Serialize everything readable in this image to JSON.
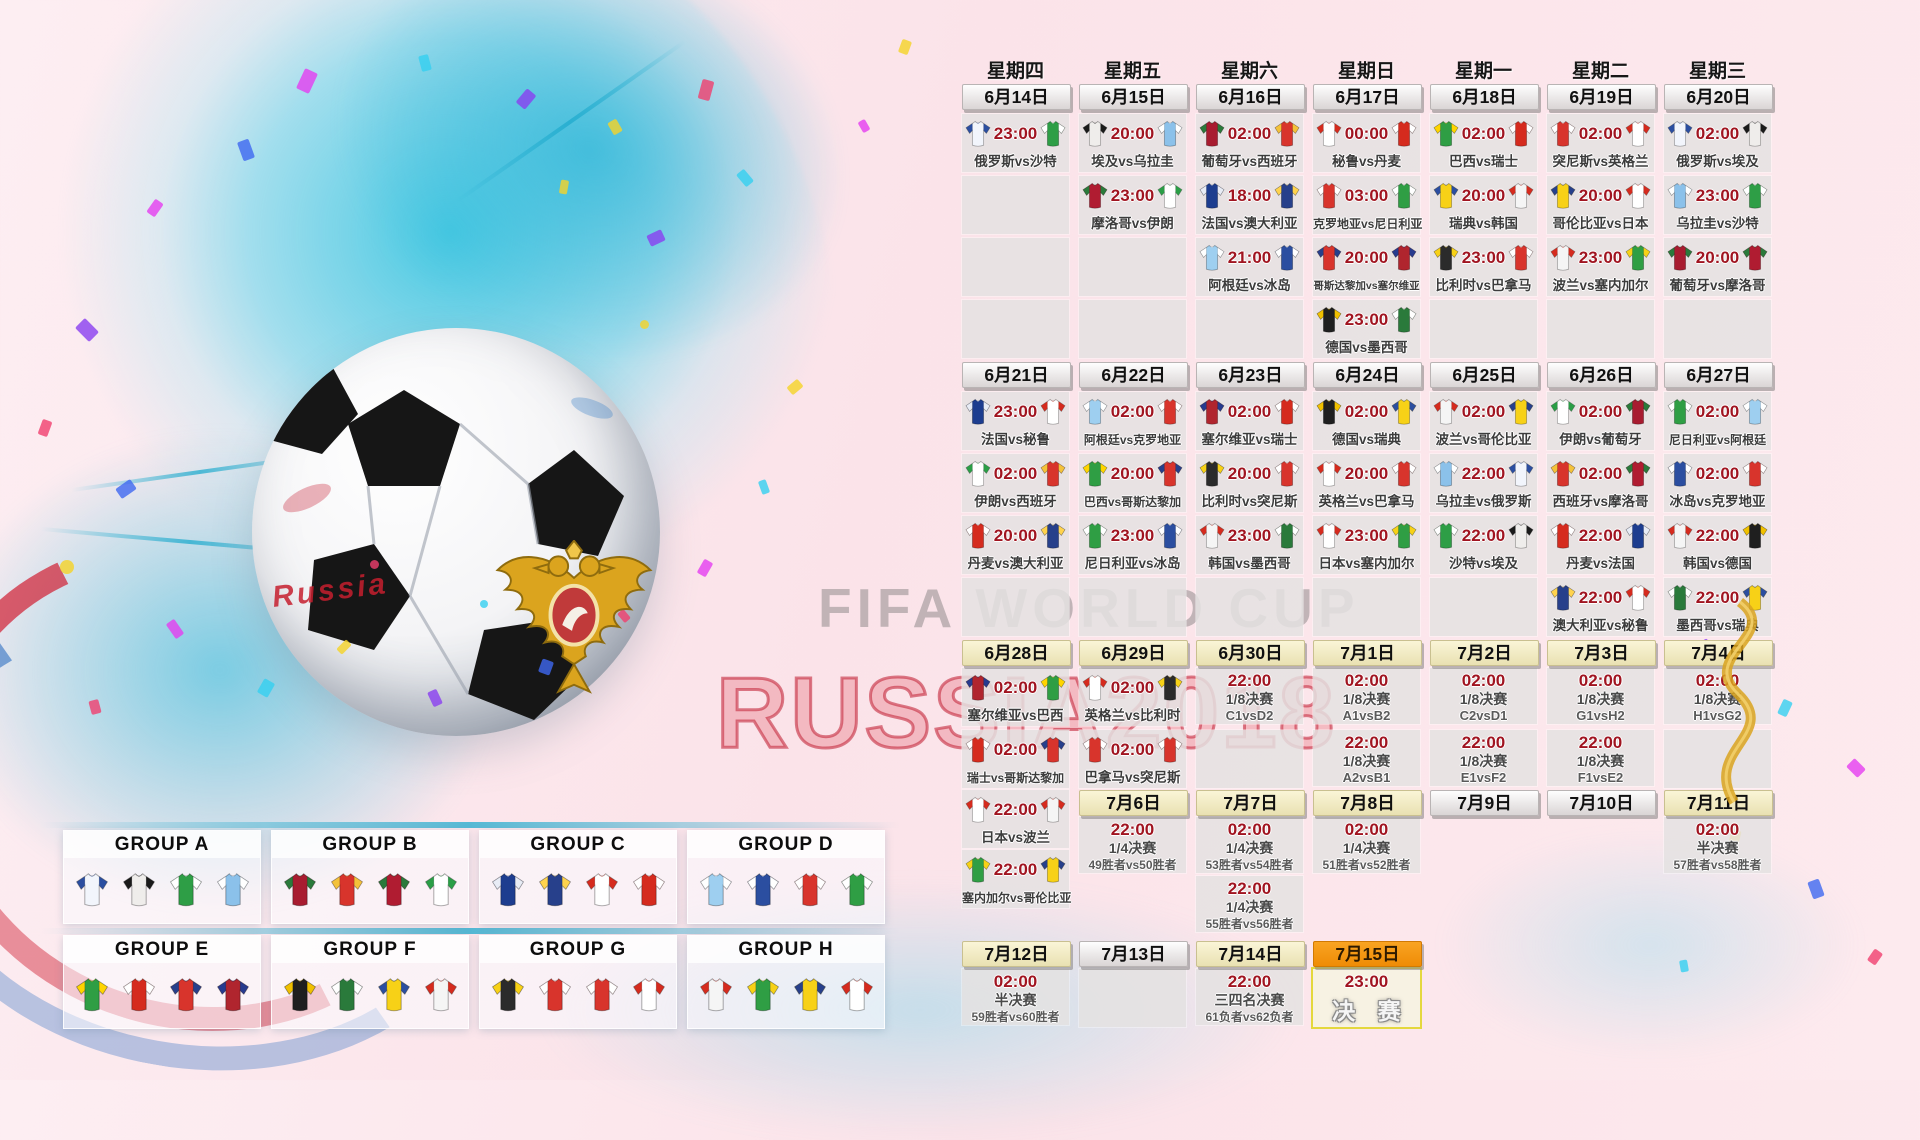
{
  "art": {
    "fifa_watermark": "FIFA WORLD CUP",
    "russia_watermark": "RUSSIA2018",
    "ball_script": "Russia"
  },
  "teams": {
    "俄罗斯": [
      "#f2f5fc",
      "#2b4ea0"
    ],
    "沙特": [
      "#2e9e46",
      "#ffffff"
    ],
    "埃及": [
      "#efedeb",
      "#1a1a1a"
    ],
    "乌拉圭": [
      "#8bc1ea",
      "#ffffff"
    ],
    "葡萄牙": [
      "#a81c30",
      "#2a7a3b"
    ],
    "西班牙": [
      "#d8342c",
      "#f3c23a"
    ],
    "秘鲁": [
      "#ffffff",
      "#d52b1e"
    ],
    "丹麦": [
      "#d52b1e",
      "#ffffff"
    ],
    "巴西": [
      "#2f9e44",
      "#ffd400"
    ],
    "瑞士": [
      "#d52b1e",
      "#ffffff"
    ],
    "突尼斯": [
      "#d8342c",
      "#ffffff"
    ],
    "英格兰": [
      "#ffffff",
      "#d52b1e"
    ],
    "摩洛哥": [
      "#b01c31",
      "#2a7a3b"
    ],
    "伊朗": [
      "#ffffff",
      "#2a9e46"
    ],
    "法国": [
      "#1d3d8f",
      "#e8ecf5"
    ],
    "澳大利亚": [
      "#27408b",
      "#ffd34d"
    ],
    "克罗地亚": [
      "#d8342c",
      "#ffffff"
    ],
    "尼日利亚": [
      "#2f9e44",
      "#ffffff"
    ],
    "瑞典": [
      "#f7d117",
      "#2b4ea0"
    ],
    "韩国": [
      "#f5f5f5",
      "#d52b1e"
    ],
    "哥伦比亚": [
      "#f7d117",
      "#27408b"
    ],
    "日本": [
      "#ffffff",
      "#d52b1e"
    ],
    "阿根廷": [
      "#9ecff0",
      "#ffffff"
    ],
    "冰岛": [
      "#2b4ea0",
      "#ffffff"
    ],
    "哥斯达黎加": [
      "#d8342c",
      "#27408b"
    ],
    "塞尔维亚": [
      "#b0252e",
      "#273b8e"
    ],
    "比利时": [
      "#2b2b2b",
      "#f7d117"
    ],
    "巴拿马": [
      "#d8342c",
      "#ffffff"
    ],
    "波兰": [
      "#f5f5f5",
      "#d52b1e"
    ],
    "塞内加尔": [
      "#2f9e44",
      "#f7d117"
    ],
    "德国": [
      "#1f1f1f",
      "#f0c000"
    ],
    "墨西哥": [
      "#2a7a3b",
      "#ffffff"
    ]
  },
  "groups": [
    {
      "label": "GROUP A",
      "teams": [
        "俄罗斯",
        "埃及",
        "沙特",
        "乌拉圭"
      ]
    },
    {
      "label": "GROUP B",
      "teams": [
        "葡萄牙",
        "西班牙",
        "摩洛哥",
        "伊朗"
      ]
    },
    {
      "label": "GROUP C",
      "teams": [
        "法国",
        "澳大利亚",
        "秘鲁",
        "丹麦"
      ]
    },
    {
      "label": "GROUP D",
      "teams": [
        "阿根廷",
        "冰岛",
        "克罗地亚",
        "尼日利亚"
      ]
    },
    {
      "label": "GROUP E",
      "teams": [
        "巴西",
        "瑞士",
        "哥斯达黎加",
        "塞尔维亚"
      ]
    },
    {
      "label": "GROUP F",
      "teams": [
        "德国",
        "墨西哥",
        "瑞典",
        "韩国"
      ]
    },
    {
      "label": "GROUP G",
      "teams": [
        "比利时",
        "巴拿马",
        "突尼斯",
        "英格兰"
      ]
    },
    {
      "label": "GROUP H",
      "teams": [
        "波兰",
        "塞内加尔",
        "哥伦比亚",
        "日本"
      ]
    }
  ],
  "schedule": {
    "weekdays": [
      "星期四",
      "星期五",
      "星期六",
      "星期日",
      "星期一",
      "星期二",
      "星期三"
    ],
    "date_rows": [
      {
        "labels": [
          "6月14日",
          "6月15日",
          "6月16日",
          "6月17日",
          "6月18日",
          "6月19日",
          "6月20日"
        ],
        "styles": [
          "gray",
          "gray",
          "gray",
          "gray",
          "gray",
          "gray",
          "gray"
        ]
      },
      {
        "labels": [
          "6月21日",
          "6月22日",
          "6月23日",
          "6月24日",
          "6月25日",
          "6月26日",
          "6月27日"
        ],
        "styles": [
          "gray",
          "gray",
          "gray",
          "gray",
          "gray",
          "gray",
          "gray"
        ]
      },
      {
        "labels": [
          "6月28日",
          "6月29日",
          "6月30日",
          "7月1日",
          "7月2日",
          "7月3日",
          "7月4日"
        ],
        "styles": [
          "cream",
          "cream",
          "cream",
          "cream",
          "cream",
          "cream",
          "cream"
        ]
      },
      {
        "labels": [
          "7月6日",
          "7月7日",
          "7月8日",
          "7月9日",
          "7月10日",
          "7月11日"
        ],
        "styles": [
          "cream",
          "cream",
          "cream",
          "gray",
          "gray",
          "cream"
        ]
      },
      {
        "labels": [
          "7月12日",
          "7月13日",
          "7月14日",
          "7月15日"
        ],
        "styles": [
          "cream",
          "gray",
          "cream",
          "orange"
        ]
      }
    ],
    "match_rows": [
      [
        {
          "t": "m",
          "time": "23:00",
          "h": "俄罗斯",
          "a": "沙特"
        },
        {
          "t": "m",
          "time": "20:00",
          "h": "埃及",
          "a": "乌拉圭"
        },
        {
          "t": "m",
          "time": "02:00",
          "h": "葡萄牙",
          "a": "西班牙"
        },
        {
          "t": "m",
          "time": "00:00",
          "h": "秘鲁",
          "a": "丹麦"
        },
        {
          "t": "m",
          "time": "02:00",
          "h": "巴西",
          "a": "瑞士"
        },
        {
          "t": "m",
          "time": "02:00",
          "h": "突尼斯",
          "a": "英格兰"
        },
        {
          "t": "m",
          "time": "02:00",
          "h": "俄罗斯",
          "a": "埃及"
        }
      ],
      [
        {
          "t": "e"
        },
        {
          "t": "m",
          "time": "23:00",
          "h": "摩洛哥",
          "a": "伊朗"
        },
        {
          "t": "m",
          "time": "18:00",
          "h": "法国",
          "a": "澳大利亚"
        },
        {
          "t": "m",
          "time": "03:00",
          "h": "克罗地亚",
          "a": "尼日利亚"
        },
        {
          "t": "m",
          "time": "20:00",
          "h": "瑞典",
          "a": "韩国"
        },
        {
          "t": "m",
          "time": "20:00",
          "h": "哥伦比亚",
          "a": "日本"
        },
        {
          "t": "m",
          "time": "23:00",
          "h": "乌拉圭",
          "a": "沙特"
        }
      ],
      [
        {
          "t": "e"
        },
        {
          "t": "e"
        },
        {
          "t": "m",
          "time": "21:00",
          "h": "阿根廷",
          "a": "冰岛"
        },
        {
          "t": "m",
          "time": "20:00",
          "h": "哥斯达黎加",
          "a": "塞尔维亚"
        },
        {
          "t": "m",
          "time": "23:00",
          "h": "比利时",
          "a": "巴拿马"
        },
        {
          "t": "m",
          "time": "23:00",
          "h": "波兰",
          "a": "塞内加尔"
        },
        {
          "t": "m",
          "time": "20:00",
          "h": "葡萄牙",
          "a": "摩洛哥"
        }
      ],
      [
        {
          "t": "e"
        },
        {
          "t": "e"
        },
        {
          "t": "e"
        },
        {
          "t": "m",
          "time": "23:00",
          "h": "德国",
          "a": "墨西哥"
        },
        {
          "t": "e"
        },
        {
          "t": "e"
        },
        {
          "t": "e"
        }
      ],
      [
        {
          "t": "m",
          "time": "23:00",
          "h": "法国",
          "a": "秘鲁"
        },
        {
          "t": "m",
          "time": "02:00",
          "h": "阿根廷",
          "a": "克罗地亚"
        },
        {
          "t": "m",
          "time": "02:00",
          "h": "塞尔维亚",
          "a": "瑞士"
        },
        {
          "t": "m",
          "time": "02:00",
          "h": "德国",
          "a": "瑞典"
        },
        {
          "t": "m",
          "time": "02:00",
          "h": "波兰",
          "a": "哥伦比亚"
        },
        {
          "t": "m",
          "time": "02:00",
          "h": "伊朗",
          "a": "葡萄牙"
        },
        {
          "t": "m",
          "time": "02:00",
          "h": "尼日利亚",
          "a": "阿根廷"
        }
      ],
      [
        {
          "t": "m",
          "time": "02:00",
          "h": "伊朗",
          "a": "西班牙"
        },
        {
          "t": "m",
          "time": "20:00",
          "h": "巴西",
          "a": "哥斯达黎加"
        },
        {
          "t": "m",
          "time": "20:00",
          "h": "比利时",
          "a": "突尼斯"
        },
        {
          "t": "m",
          "time": "20:00",
          "h": "英格兰",
          "a": "巴拿马"
        },
        {
          "t": "m",
          "time": "22:00",
          "h": "乌拉圭",
          "a": "俄罗斯"
        },
        {
          "t": "m",
          "time": "02:00",
          "h": "西班牙",
          "a": "摩洛哥"
        },
        {
          "t": "m",
          "time": "02:00",
          "h": "冰岛",
          "a": "克罗地亚"
        }
      ],
      [
        {
          "t": "m",
          "time": "20:00",
          "h": "丹麦",
          "a": "澳大利亚"
        },
        {
          "t": "m",
          "time": "23:00",
          "h": "尼日利亚",
          "a": "冰岛"
        },
        {
          "t": "m",
          "time": "23:00",
          "h": "韩国",
          "a": "墨西哥"
        },
        {
          "t": "m",
          "time": "23:00",
          "h": "日本",
          "a": "塞内加尔"
        },
        {
          "t": "m",
          "time": "22:00",
          "h": "沙特",
          "a": "埃及"
        },
        {
          "t": "m",
          "time": "22:00",
          "h": "丹麦",
          "a": "法国"
        },
        {
          "t": "m",
          "time": "22:00",
          "h": "韩国",
          "a": "德国"
        }
      ],
      [
        {
          "t": "e"
        },
        {
          "t": "e"
        },
        {
          "t": "e"
        },
        {
          "t": "e"
        },
        {
          "t": "e"
        },
        {
          "t": "m",
          "time": "22:00",
          "h": "澳大利亚",
          "a": "秘鲁"
        },
        {
          "t": "m",
          "time": "22:00",
          "h": "墨西哥",
          "a": "瑞典"
        }
      ],
      [
        {
          "t": "m",
          "time": "02:00",
          "h": "塞尔维亚",
          "a": "巴西"
        },
        {
          "t": "m",
          "time": "02:00",
          "h": "英格兰",
          "a": "比利时"
        },
        {
          "t": "k",
          "time": "22:00",
          "s": "1/8决赛",
          "p": "C1vsD2"
        },
        {
          "t": "k",
          "time": "02:00",
          "s": "1/8决赛",
          "p": "A1vsB2"
        },
        {
          "t": "k",
          "time": "02:00",
          "s": "1/8决赛",
          "p": "C2vsD1"
        },
        {
          "t": "k",
          "time": "02:00",
          "s": "1/8决赛",
          "p": "G1vsH2"
        },
        {
          "t": "k",
          "time": "02:00",
          "s": "1/8决赛",
          "p": "H1vsG2"
        }
      ],
      [
        {
          "t": "m",
          "time": "02:00",
          "h": "瑞士",
          "a": "哥斯达黎加"
        },
        {
          "t": "m",
          "time": "02:00",
          "h": "巴拿马",
          "a": "突尼斯"
        },
        {
          "t": "e"
        },
        {
          "t": "k",
          "time": "22:00",
          "s": "1/8决赛",
          "p": "A2vsB1"
        },
        {
          "t": "k",
          "time": "22:00",
          "s": "1/8决赛",
          "p": "E1vsF2"
        },
        {
          "t": "k",
          "time": "22:00",
          "s": "1/8决赛",
          "p": "F1vsE2"
        },
        {
          "t": "e"
        }
      ]
    ],
    "extra_cells": [
      {
        "col": 0,
        "cell": {
          "t": "m",
          "time": "22:00",
          "h": "日本",
          "a": "波兰"
        }
      },
      {
        "col": 0,
        "cell": {
          "t": "m",
          "time": "22:00",
          "h": "塞内加尔",
          "a": "哥伦比亚"
        }
      },
      {
        "col": 1,
        "cell": {
          "t": "k",
          "time": "22:00",
          "s": "1/4决赛",
          "p": "49胜者vs50胜者"
        }
      },
      {
        "col": 2,
        "cell": {
          "t": "k",
          "time": "02:00",
          "s": "1/4决赛",
          "p": "53胜者vs54胜者"
        }
      },
      {
        "col": 3,
        "cell": {
          "t": "k",
          "time": "02:00",
          "s": "1/4决赛",
          "p": "51胜者vs52胜者"
        }
      },
      {
        "col": 6,
        "cell": {
          "t": "k",
          "time": "02:00",
          "s": "半决赛",
          "p": "57胜者vs58胜者"
        }
      },
      {
        "col": 2,
        "cell": {
          "t": "k",
          "time": "22:00",
          "s": "1/4决赛",
          "p": "55胜者vs56胜者"
        }
      },
      {
        "col": 0,
        "cell": {
          "t": "k",
          "time": "02:00",
          "s": "半决赛",
          "p": "59胜者vs60胜者"
        }
      },
      {
        "col": 1,
        "cell": {
          "t": "e"
        }
      },
      {
        "col": 2,
        "cell": {
          "t": "k",
          "time": "22:00",
          "s": "三四名决赛",
          "p": "61负者vs62负者"
        }
      },
      {
        "col": 3,
        "cell": {
          "t": "f",
          "time": "23:00",
          "label": "决 赛"
        }
      }
    ]
  }
}
